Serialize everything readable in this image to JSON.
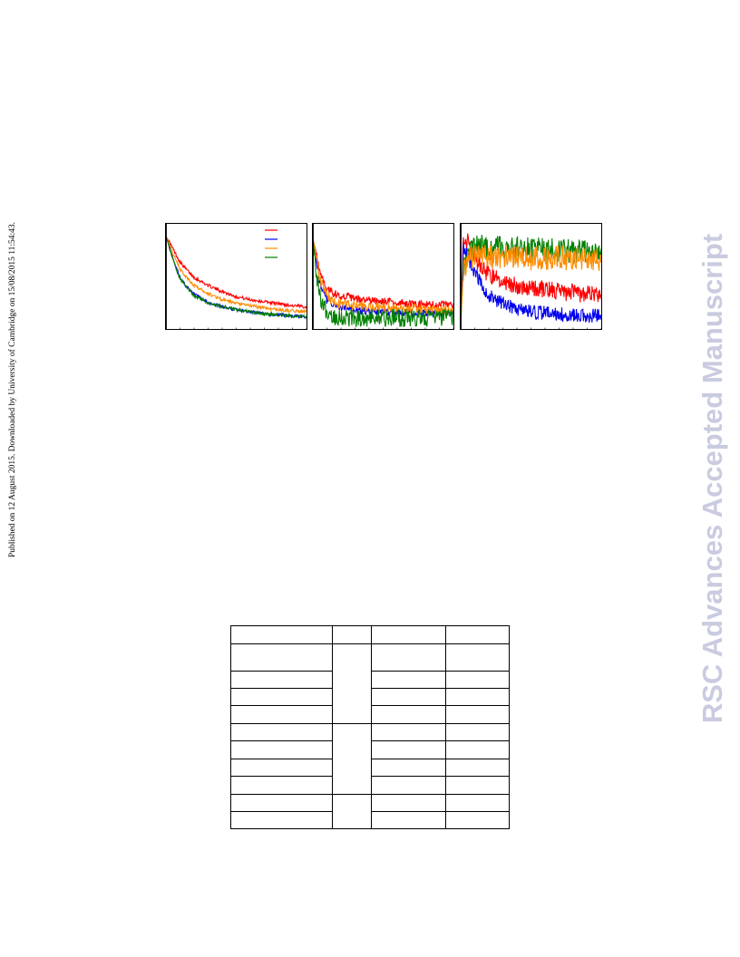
{
  "side_note": "Published on 12 August 2015. Downloaded by University of Cambridge on 15/08/2015 11:54:43.",
  "watermark": "RSC Advances Accepted Manuscript",
  "colors": {
    "red": "#ff0000",
    "blue": "#0000ee",
    "orange": "#ff8c00",
    "green": "#008000"
  },
  "chart_data": [
    {
      "type": "line",
      "panel": 1,
      "x": [
        0,
        0.02,
        0.05,
        0.1,
        0.15,
        0.2,
        0.3,
        0.4,
        0.5,
        0.6,
        0.7,
        0.8,
        0.9,
        1.0
      ],
      "ylim": [
        0,
        1
      ],
      "legend": "top-right",
      "series": [
        {
          "color": "red",
          "values": [
            0.9,
            0.86,
            0.78,
            0.65,
            0.57,
            0.5,
            0.42,
            0.36,
            0.31,
            0.28,
            0.26,
            0.24,
            0.22,
            0.21
          ],
          "noise": 0.008
        },
        {
          "color": "blue",
          "values": [
            0.9,
            0.82,
            0.68,
            0.5,
            0.4,
            0.33,
            0.25,
            0.21,
            0.18,
            0.16,
            0.14,
            0.13,
            0.12,
            0.11
          ],
          "noise": 0.008
        },
        {
          "color": "orange",
          "values": [
            0.9,
            0.84,
            0.73,
            0.58,
            0.49,
            0.42,
            0.34,
            0.28,
            0.24,
            0.22,
            0.2,
            0.18,
            0.17,
            0.16
          ],
          "noise": 0.008
        },
        {
          "color": "green",
          "values": [
            0.9,
            0.82,
            0.67,
            0.49,
            0.39,
            0.32,
            0.25,
            0.21,
            0.18,
            0.16,
            0.14,
            0.13,
            0.12,
            0.11
          ],
          "noise": 0.008
        }
      ]
    },
    {
      "type": "line",
      "panel": 2,
      "x": [
        0,
        0.02,
        0.05,
        0.1,
        0.15,
        0.2,
        0.3,
        0.4,
        0.5,
        0.6,
        0.7,
        0.8,
        0.9,
        1.0
      ],
      "ylim": [
        0,
        1
      ],
      "series": [
        {
          "color": "red",
          "values": [
            0.88,
            0.75,
            0.55,
            0.4,
            0.34,
            0.32,
            0.29,
            0.27,
            0.26,
            0.25,
            0.24,
            0.23,
            0.23,
            0.22
          ],
          "noise": 0.02
        },
        {
          "color": "blue",
          "values": [
            0.88,
            0.7,
            0.45,
            0.28,
            0.22,
            0.2,
            0.18,
            0.17,
            0.16,
            0.16,
            0.15,
            0.15,
            0.15,
            0.14
          ],
          "noise": 0.02
        },
        {
          "color": "orange",
          "values": [
            0.88,
            0.72,
            0.48,
            0.32,
            0.26,
            0.24,
            0.22,
            0.2,
            0.2,
            0.19,
            0.19,
            0.18,
            0.18,
            0.18
          ],
          "noise": 0.025
        },
        {
          "color": "green",
          "values": [
            0.88,
            0.6,
            0.32,
            0.15,
            0.12,
            0.11,
            0.1,
            0.1,
            0.1,
            0.1,
            0.1,
            0.1,
            0.1,
            0.1
          ],
          "noise": 0.045
        }
      ]
    },
    {
      "type": "line",
      "panel": 3,
      "x": [
        0,
        0.02,
        0.05,
        0.1,
        0.15,
        0.2,
        0.3,
        0.4,
        0.5,
        0.6,
        0.7,
        0.8,
        0.9,
        1.0
      ],
      "ylim": [
        0,
        1
      ],
      "series": [
        {
          "color": "red",
          "values": [
            0.05,
            0.9,
            0.85,
            0.7,
            0.6,
            0.52,
            0.46,
            0.42,
            0.4,
            0.38,
            0.36,
            0.35,
            0.33,
            0.33
          ],
          "noise": 0.045
        },
        {
          "color": "blue",
          "values": [
            0.05,
            0.8,
            0.7,
            0.55,
            0.42,
            0.32,
            0.24,
            0.18,
            0.16,
            0.15,
            0.14,
            0.13,
            0.12,
            0.12
          ],
          "noise": 0.035
        },
        {
          "color": "green",
          "values": [
            0.05,
            0.6,
            0.72,
            0.8,
            0.8,
            0.79,
            0.79,
            0.78,
            0.78,
            0.77,
            0.77,
            0.76,
            0.76,
            0.75
          ],
          "noise": 0.06
        },
        {
          "color": "orange",
          "values": [
            0.05,
            0.55,
            0.68,
            0.72,
            0.72,
            0.71,
            0.7,
            0.7,
            0.69,
            0.69,
            0.69,
            0.68,
            0.68,
            0.68
          ],
          "noise": 0.06
        }
      ]
    }
  ]
}
